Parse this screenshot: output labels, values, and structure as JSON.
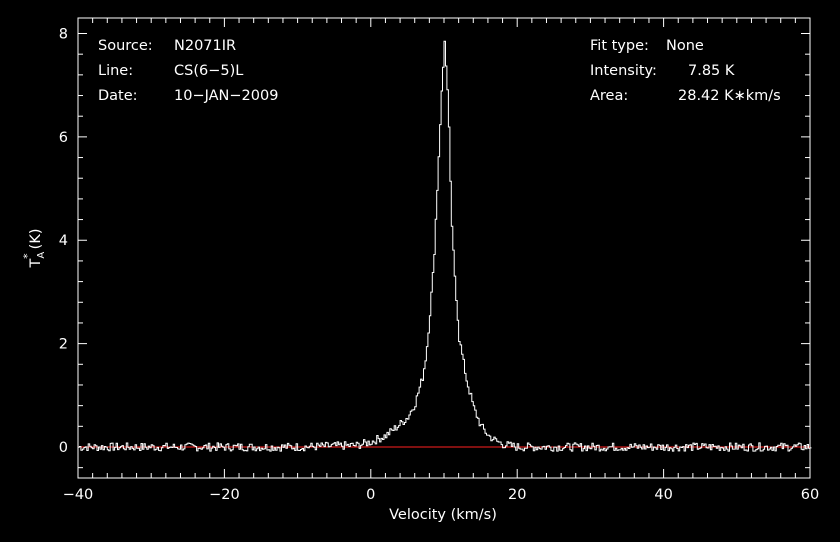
{
  "chart_data": {
    "type": "line",
    "xlabel": "Velocity (km/s)",
    "ylabel_main": "T",
    "ylabel_sub": "A",
    "ylabel_sup": "*",
    "ylabel_unit": "(K)",
    "xlim": [
      -40,
      60
    ],
    "ylim": [
      -0.6,
      8.3
    ],
    "xticks": [
      -40,
      -20,
      0,
      20,
      40,
      60
    ],
    "xtick_labels": [
      "−40",
      "−20",
      "0",
      "20",
      "40",
      "60"
    ],
    "yticks": [
      0,
      2,
      4,
      6,
      8
    ],
    "ytick_labels": [
      "0",
      "2",
      "4",
      "6",
      "8"
    ],
    "grid": false,
    "series": [
      {
        "color": "#ffffff",
        "x": [
          -40,
          -30,
          -20,
          -10,
          -2,
          0,
          2,
          4,
          5,
          6,
          7,
          7.5,
          8,
          8.5,
          9,
          9.5,
          10,
          10.5,
          11,
          11.5,
          12,
          13,
          14,
          15,
          16,
          17,
          18,
          20,
          30,
          40,
          50,
          60
        ],
        "y": [
          0,
          0,
          0,
          0,
          0.03,
          0.1,
          0.22,
          0.45,
          0.58,
          0.85,
          1.35,
          1.8,
          2.6,
          3.5,
          5.0,
          6.6,
          7.85,
          6.6,
          4.2,
          3.1,
          2.1,
          1.3,
          0.75,
          0.4,
          0.22,
          0.12,
          0.05,
          0,
          0,
          0,
          0,
          0
        ]
      },
      {
        "color": "#ff2020",
        "x": [
          -40,
          60
        ],
        "y": [
          0,
          0
        ]
      }
    ],
    "info_left": [
      {
        "key": "Source:",
        "value": "N2071IR"
      },
      {
        "key": "Line:",
        "value": "CS(6−5)L"
      },
      {
        "key": "Date:",
        "value": "10−JAN−2009"
      }
    ],
    "info_right": [
      {
        "key": "Fit type:",
        "value": "None"
      },
      {
        "key": "Intensity:",
        "value": "7.85 K"
      },
      {
        "key": "Area:",
        "value": "28.42 K∗km/s"
      }
    ]
  }
}
